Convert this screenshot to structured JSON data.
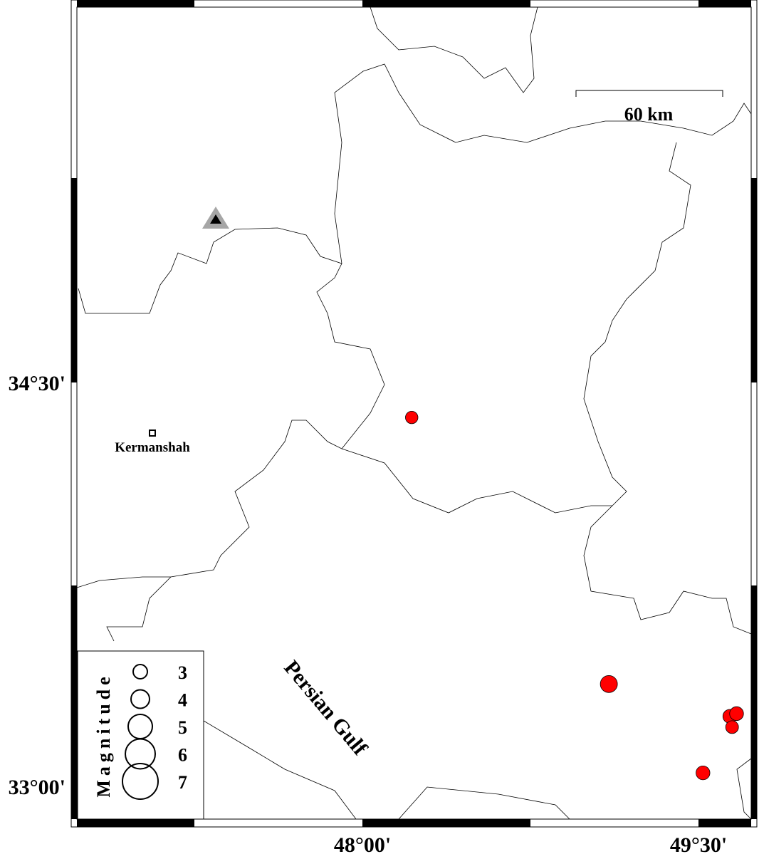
{
  "map": {
    "axes": {
      "x_ticks": [
        "48°00'",
        "49°30'"
      ],
      "y_ticks": [
        "34°30'",
        "33°00'"
      ]
    },
    "scale_bar": {
      "label": "60 km"
    },
    "places": [
      {
        "name": "Kermanshah",
        "type": "city",
        "symbol": "square"
      }
    ],
    "water_labels": [
      "Persian Gulf"
    ],
    "station": {
      "symbol": "triangle",
      "outer_color": "#a6a6a6",
      "inner_color": "#000000"
    },
    "events": [
      {
        "magnitude": 3.5,
        "lon": 48.22,
        "lat": 34.37
      },
      {
        "magnitude": 4.8,
        "lon": 49.1,
        "lat": 33.38
      },
      {
        "magnitude": 3.9,
        "lon": 49.64,
        "lat": 33.26
      },
      {
        "magnitude": 3.9,
        "lon": 49.67,
        "lat": 33.27
      },
      {
        "magnitude": 3.6,
        "lon": 49.65,
        "lat": 33.22
      },
      {
        "magnitude": 3.9,
        "lon": 49.52,
        "lat": 33.05
      }
    ],
    "event_color": "#ff0000",
    "legend": {
      "title": "Magnitude",
      "items": [
        "3",
        "4",
        "5",
        "6",
        "7"
      ]
    }
  }
}
